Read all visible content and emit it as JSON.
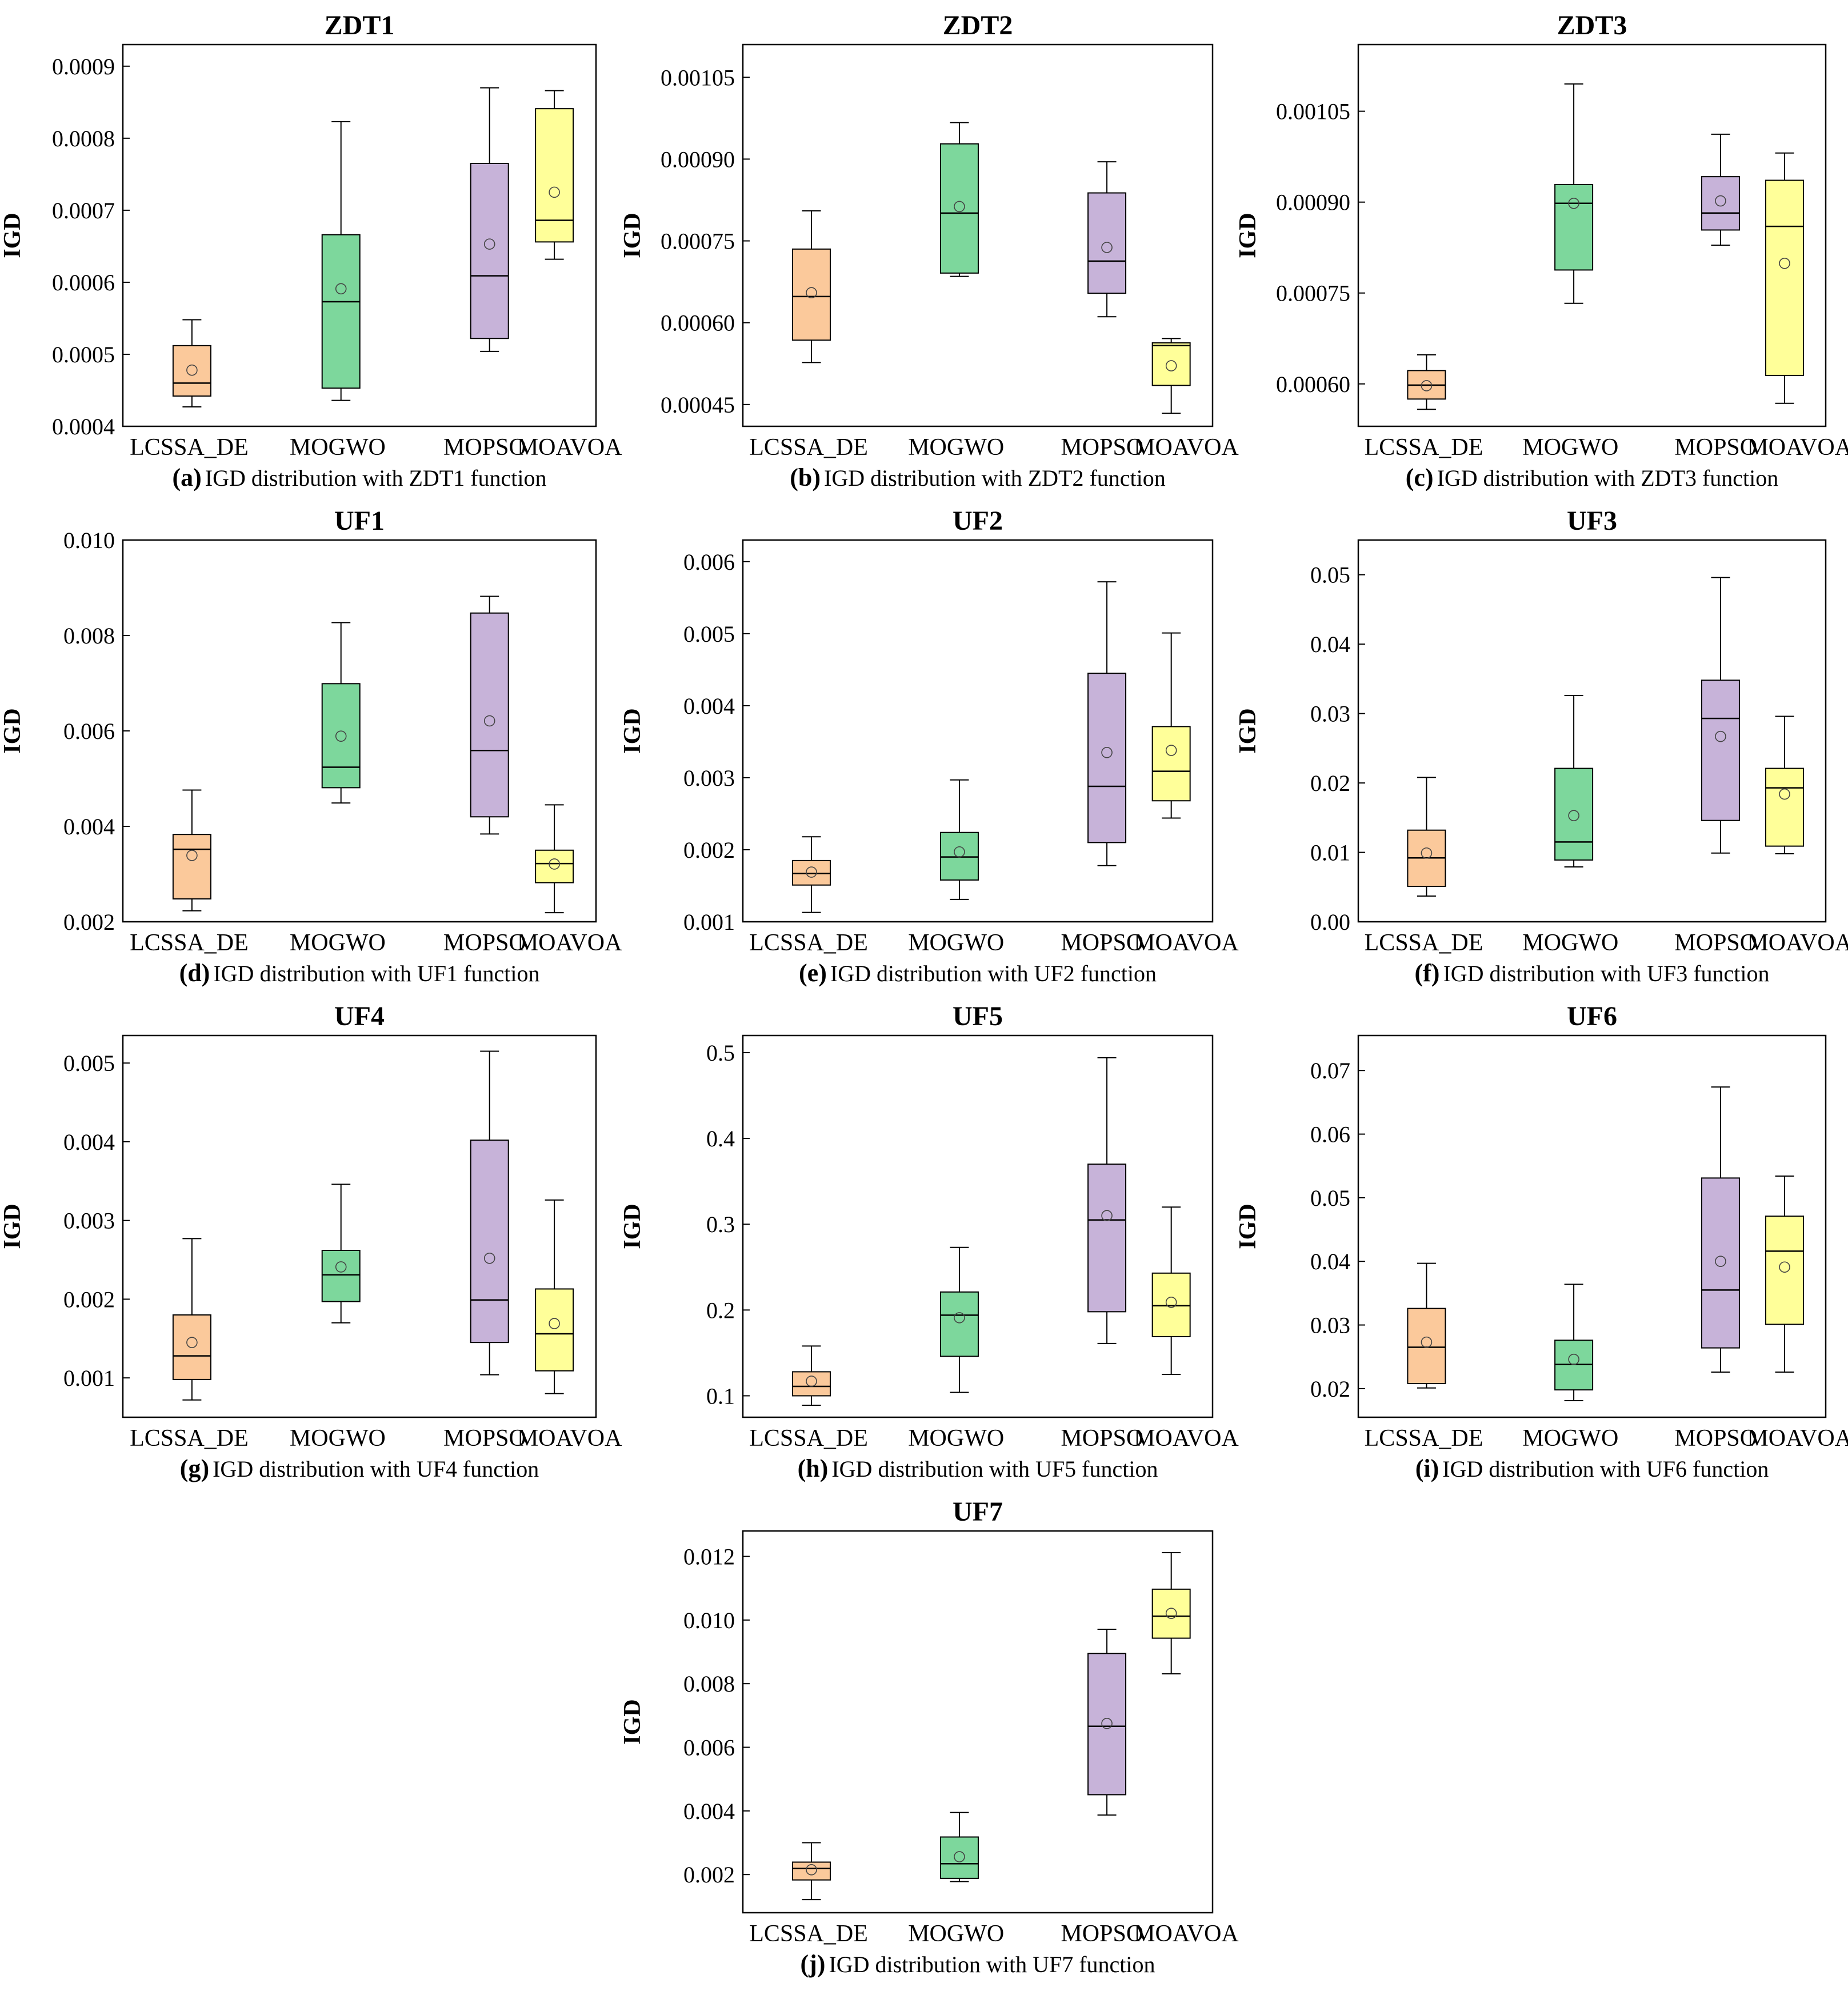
{
  "palette": {
    "fills": [
      "#fbc99b",
      "#7dd79c",
      "#c7b3d9",
      "#ffff99"
    ],
    "stroke": "#000000",
    "background": "#ffffff"
  },
  "chart_data": [
    {
      "id": "a",
      "type": "box",
      "title": "ZDT1",
      "ylabel": "IGD",
      "caption_label": "(a)",
      "caption_text": "IGD distribution with ZDT1 function",
      "categories": [
        "LCSSA_DE",
        "MOGWO",
        "MOPSO",
        "MOAVOA"
      ],
      "ylim": [
        0.0004,
        0.00093
      ],
      "yticks": [
        0.0004,
        0.0005,
        0.0006,
        0.0007,
        0.0008,
        0.0009
      ],
      "ytick_labels": [
        "0.0004",
        "0.0005",
        "0.0006",
        "0.0007",
        "0.0008",
        "0.0009"
      ],
      "boxes": [
        {
          "min": 0.000427,
          "q1": 0.000442,
          "median": 0.00046,
          "q3": 0.000512,
          "max": 0.000548,
          "mean": 0.000478
        },
        {
          "min": 0.000436,
          "q1": 0.000453,
          "median": 0.000573,
          "q3": 0.000666,
          "max": 0.000823,
          "mean": 0.000591
        },
        {
          "min": 0.000504,
          "q1": 0.000522,
          "median": 0.000609,
          "q3": 0.000765,
          "max": 0.00087,
          "mean": 0.000653
        },
        {
          "min": 0.000632,
          "q1": 0.000656,
          "median": 0.000686,
          "q3": 0.000841,
          "max": 0.000866,
          "mean": 0.000725
        }
      ]
    },
    {
      "id": "b",
      "type": "box",
      "title": "ZDT2",
      "ylabel": "IGD",
      "caption_label": "(b)",
      "caption_text": "IGD distribution with ZDT2 function",
      "categories": [
        "LCSSA_DE",
        "MOGWO",
        "MOPSO",
        "MOAVOA"
      ],
      "ylim": [
        0.00041,
        0.00111
      ],
      "yticks": [
        0.00045,
        0.0006,
        0.00075,
        0.0009,
        0.00105
      ],
      "ytick_labels": [
        "0.00045",
        "0.00060",
        "0.00075",
        "0.00090",
        "0.00105"
      ],
      "boxes": [
        {
          "min": 0.000527,
          "q1": 0.000568,
          "median": 0.000648,
          "q3": 0.000735,
          "max": 0.000805,
          "mean": 0.000655
        },
        {
          "min": 0.000685,
          "q1": 0.000691,
          "median": 0.000801,
          "q3": 0.000928,
          "max": 0.000967,
          "mean": 0.000813
        },
        {
          "min": 0.000611,
          "q1": 0.000654,
          "median": 0.000713,
          "q3": 0.000838,
          "max": 0.000895,
          "mean": 0.000738
        },
        {
          "min": 0.000434,
          "q1": 0.000485,
          "median": 0.000558,
          "q3": 0.000563,
          "max": 0.000571,
          "mean": 0.000521
        }
      ]
    },
    {
      "id": "c",
      "type": "box",
      "title": "ZDT3",
      "ylabel": "IGD",
      "caption_label": "(c)",
      "caption_text": "IGD distribution with ZDT3 function",
      "categories": [
        "LCSSA_DE",
        "MOGWO",
        "MOPSO",
        "MOAVOA"
      ],
      "ylim": [
        0.00053,
        0.00116
      ],
      "yticks": [
        0.0006,
        0.00075,
        0.0009,
        0.00105
      ],
      "ytick_labels": [
        "0.00060",
        "0.00075",
        "0.00090",
        "0.00105"
      ],
      "boxes": [
        {
          "min": 0.000558,
          "q1": 0.000575,
          "median": 0.000598,
          "q3": 0.000622,
          "max": 0.000648,
          "mean": 0.000597
        },
        {
          "min": 0.000733,
          "q1": 0.000788,
          "median": 0.000898,
          "q3": 0.000929,
          "max": 0.001095,
          "mean": 0.000898
        },
        {
          "min": 0.000829,
          "q1": 0.000854,
          "median": 0.000882,
          "q3": 0.000942,
          "max": 0.001012,
          "mean": 0.000902
        },
        {
          "min": 0.000568,
          "q1": 0.000614,
          "median": 0.00086,
          "q3": 0.000936,
          "max": 0.000981,
          "mean": 0.000799
        }
      ]
    },
    {
      "id": "d",
      "type": "box",
      "title": "UF1",
      "ylabel": "IGD",
      "caption_label": "(d)",
      "caption_text": "IGD distribution with UF1 function",
      "categories": [
        "LCSSA_DE",
        "MOGWO",
        "MOPSO",
        "MOAVOA"
      ],
      "ylim": [
        0.002,
        0.01
      ],
      "yticks": [
        0.002,
        0.004,
        0.006,
        0.008,
        0.01
      ],
      "ytick_labels": [
        "0.002",
        "0.004",
        "0.006",
        "0.008",
        "0.010"
      ],
      "boxes": [
        {
          "min": 0.00223,
          "q1": 0.00248,
          "median": 0.00352,
          "q3": 0.00383,
          "max": 0.00476,
          "mean": 0.00339
        },
        {
          "min": 0.00449,
          "q1": 0.00481,
          "median": 0.00524,
          "q3": 0.00699,
          "max": 0.00827,
          "mean": 0.00589
        },
        {
          "min": 0.00384,
          "q1": 0.0042,
          "median": 0.00559,
          "q3": 0.00847,
          "max": 0.00882,
          "mean": 0.00621
        },
        {
          "min": 0.00219,
          "q1": 0.00282,
          "median": 0.00322,
          "q3": 0.0035,
          "max": 0.00445,
          "mean": 0.00321
        }
      ]
    },
    {
      "id": "e",
      "type": "box",
      "title": "UF2",
      "ylabel": "IGD",
      "caption_label": "(e)",
      "caption_text": "IGD distribution with UF2 function",
      "categories": [
        "LCSSA_DE",
        "MOGWO",
        "MOPSO",
        "MOAVOA"
      ],
      "ylim": [
        0.001,
        0.0063
      ],
      "yticks": [
        0.001,
        0.002,
        0.003,
        0.004,
        0.005,
        0.006
      ],
      "ytick_labels": [
        "0.001",
        "0.002",
        "0.003",
        "0.004",
        "0.005",
        "0.006"
      ],
      "boxes": [
        {
          "min": 0.00113,
          "q1": 0.00151,
          "median": 0.00167,
          "q3": 0.00185,
          "max": 0.00218,
          "mean": 0.00169
        },
        {
          "min": 0.00131,
          "q1": 0.00158,
          "median": 0.0019,
          "q3": 0.00224,
          "max": 0.00297,
          "mean": 0.00197
        },
        {
          "min": 0.00178,
          "q1": 0.0021,
          "median": 0.00288,
          "q3": 0.00445,
          "max": 0.00572,
          "mean": 0.00335
        },
        {
          "min": 0.00244,
          "q1": 0.00268,
          "median": 0.00309,
          "q3": 0.00371,
          "max": 0.00501,
          "mean": 0.00338
        }
      ]
    },
    {
      "id": "f",
      "type": "box",
      "title": "UF3",
      "ylabel": "IGD",
      "caption_label": "(f)",
      "caption_text": "IGD distribution with UF3 function",
      "categories": [
        "LCSSA_DE",
        "MOGWO",
        "MOPSO",
        "MOAVOA"
      ],
      "ylim": [
        0.0,
        0.055
      ],
      "yticks": [
        0.0,
        0.01,
        0.02,
        0.03,
        0.04,
        0.05
      ],
      "ytick_labels": [
        "0.00",
        "0.01",
        "0.02",
        "0.03",
        "0.04",
        "0.05"
      ],
      "boxes": [
        {
          "min": 0.0037,
          "q1": 0.0051,
          "median": 0.0092,
          "q3": 0.0132,
          "max": 0.0208,
          "mean": 0.0099
        },
        {
          "min": 0.0079,
          "q1": 0.0089,
          "median": 0.0115,
          "q3": 0.0221,
          "max": 0.0326,
          "mean": 0.0153
        },
        {
          "min": 0.0099,
          "q1": 0.0146,
          "median": 0.0293,
          "q3": 0.0348,
          "max": 0.0496,
          "mean": 0.0267
        },
        {
          "min": 0.0098,
          "q1": 0.0109,
          "median": 0.0193,
          "q3": 0.0221,
          "max": 0.0296,
          "mean": 0.0184
        }
      ]
    },
    {
      "id": "g",
      "type": "box",
      "title": "UF4",
      "ylabel": "IGD",
      "caption_label": "(g)",
      "caption_text": "IGD distribution with UF4 function",
      "categories": [
        "LCSSA_DE",
        "MOGWO",
        "MOPSO",
        "MOAVOA"
      ],
      "ylim": [
        0.0005,
        0.00535
      ],
      "yticks": [
        0.001,
        0.002,
        0.003,
        0.004,
        0.005
      ],
      "ytick_labels": [
        "0.001",
        "0.002",
        "0.003",
        "0.004",
        "0.005"
      ],
      "boxes": [
        {
          "min": 0.00072,
          "q1": 0.00098,
          "median": 0.00128,
          "q3": 0.0018,
          "max": 0.00277,
          "mean": 0.00145
        },
        {
          "min": 0.0017,
          "q1": 0.00197,
          "median": 0.00231,
          "q3": 0.00262,
          "max": 0.00346,
          "mean": 0.00241
        },
        {
          "min": 0.00104,
          "q1": 0.00145,
          "median": 0.00199,
          "q3": 0.00402,
          "max": 0.00515,
          "mean": 0.00252
        },
        {
          "min": 0.0008,
          "q1": 0.00109,
          "median": 0.00156,
          "q3": 0.00213,
          "max": 0.00326,
          "mean": 0.00169
        }
      ]
    },
    {
      "id": "h",
      "type": "box",
      "title": "UF5",
      "ylabel": "IGD",
      "caption_label": "(h)",
      "caption_text": "IGD distribution with UF5 function",
      "categories": [
        "LCSSA_DE",
        "MOGWO",
        "MOPSO",
        "MOAVOA"
      ],
      "ylim": [
        0.075,
        0.52
      ],
      "yticks": [
        0.1,
        0.2,
        0.3,
        0.4,
        0.5
      ],
      "ytick_labels": [
        "0.1",
        "0.2",
        "0.3",
        "0.4",
        "0.5"
      ],
      "boxes": [
        {
          "min": 0.089,
          "q1": 0.1,
          "median": 0.111,
          "q3": 0.128,
          "max": 0.158,
          "mean": 0.117
        },
        {
          "min": 0.104,
          "q1": 0.146,
          "median": 0.194,
          "q3": 0.221,
          "max": 0.273,
          "mean": 0.191
        },
        {
          "min": 0.161,
          "q1": 0.198,
          "median": 0.305,
          "q3": 0.37,
          "max": 0.494,
          "mean": 0.31
        },
        {
          "min": 0.125,
          "q1": 0.169,
          "median": 0.205,
          "q3": 0.243,
          "max": 0.32,
          "mean": 0.209
        }
      ]
    },
    {
      "id": "i",
      "type": "box",
      "title": "UF6",
      "ylabel": "IGD",
      "caption_label": "(i)",
      "caption_text": "IGD distribution with UF6 function",
      "categories": [
        "LCSSA_DE",
        "MOGWO",
        "MOPSO",
        "MOAVOA"
      ],
      "ylim": [
        0.0155,
        0.0755
      ],
      "yticks": [
        0.02,
        0.03,
        0.04,
        0.05,
        0.06,
        0.07
      ],
      "ytick_labels": [
        "0.02",
        "0.03",
        "0.04",
        "0.05",
        "0.06",
        "0.07"
      ],
      "boxes": [
        {
          "min": 0.0201,
          "q1": 0.0208,
          "median": 0.0265,
          "q3": 0.0326,
          "max": 0.0397,
          "mean": 0.0273
        },
        {
          "min": 0.0181,
          "q1": 0.0198,
          "median": 0.0238,
          "q3": 0.0276,
          "max": 0.0364,
          "mean": 0.0246
        },
        {
          "min": 0.0226,
          "q1": 0.0264,
          "median": 0.0355,
          "q3": 0.0531,
          "max": 0.0674,
          "mean": 0.04
        },
        {
          "min": 0.0226,
          "q1": 0.0301,
          "median": 0.0416,
          "q3": 0.0471,
          "max": 0.0534,
          "mean": 0.0391
        }
      ]
    },
    {
      "id": "j",
      "type": "box",
      "title": "UF7",
      "ylabel": "IGD",
      "caption_label": "(j)",
      "caption_text": "IGD distribution with UF7 function",
      "categories": [
        "LCSSA_DE",
        "MOGWO",
        "MOPSO",
        "MOAVOA"
      ],
      "ylim": [
        0.0008,
        0.0128
      ],
      "yticks": [
        0.002,
        0.004,
        0.006,
        0.008,
        0.01,
        0.012
      ],
      "ytick_labels": [
        "0.002",
        "0.004",
        "0.006",
        "0.008",
        "0.010",
        "0.012"
      ],
      "boxes": [
        {
          "min": 0.00121,
          "q1": 0.00183,
          "median": 0.00219,
          "q3": 0.00239,
          "max": 0.003,
          "mean": 0.00215
        },
        {
          "min": 0.00178,
          "q1": 0.00188,
          "median": 0.00234,
          "q3": 0.00318,
          "max": 0.00395,
          "mean": 0.00256
        },
        {
          "min": 0.00387,
          "q1": 0.00451,
          "median": 0.00666,
          "q3": 0.00895,
          "max": 0.00971,
          "mean": 0.00675
        },
        {
          "min": 0.00831,
          "q1": 0.00943,
          "median": 0.01012,
          "q3": 0.01097,
          "max": 0.01212,
          "mean": 0.01021
        }
      ]
    }
  ]
}
